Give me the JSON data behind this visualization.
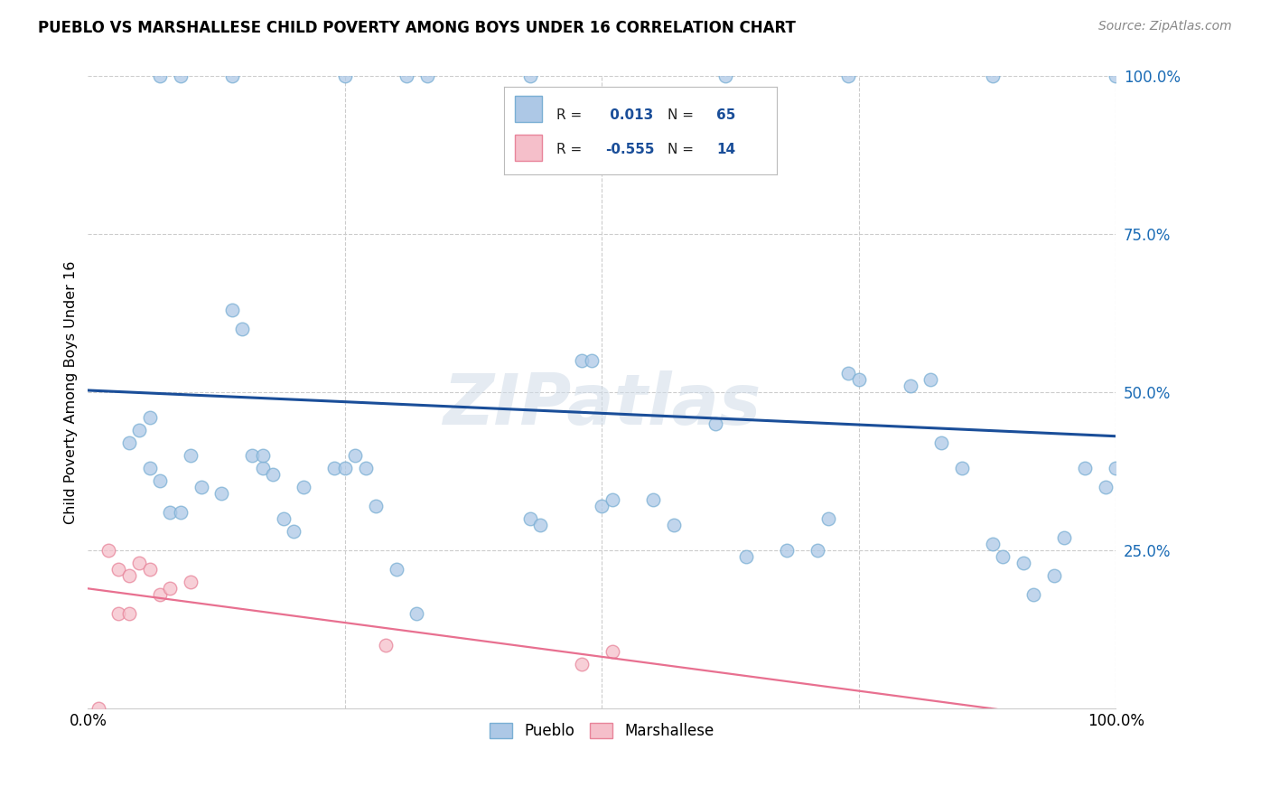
{
  "title": "PUEBLO VS MARSHALLESE CHILD POVERTY AMONG BOYS UNDER 16 CORRELATION CHART",
  "source": "Source: ZipAtlas.com",
  "ylabel": "Child Poverty Among Boys Under 16",
  "xlim": [
    0,
    1
  ],
  "ylim": [
    0,
    1
  ],
  "pueblo_color": "#adc8e6",
  "pueblo_edge_color": "#7aafd4",
  "marshallese_color": "#f5bfca",
  "marshallese_edge_color": "#e8849a",
  "blue_line_color": "#1a4e99",
  "pink_line_color": "#e87090",
  "r_pueblo": 0.013,
  "n_pueblo": 65,
  "r_marshallese": -0.555,
  "n_marshallese": 14,
  "pueblo_x": [
    0.07,
    0.09,
    0.14,
    0.25,
    0.31,
    0.33,
    0.43,
    0.62,
    0.74,
    0.88,
    1.0,
    0.04,
    0.05,
    0.06,
    0.06,
    0.07,
    0.08,
    0.09,
    0.1,
    0.11,
    0.13,
    0.14,
    0.15,
    0.16,
    0.17,
    0.17,
    0.18,
    0.19,
    0.2,
    0.21,
    0.24,
    0.25,
    0.26,
    0.27,
    0.28,
    0.3,
    0.32,
    0.43,
    0.44,
    0.5,
    0.51,
    0.55,
    0.57,
    0.61,
    0.64,
    0.68,
    0.71,
    0.72,
    0.74,
    0.75,
    0.8,
    0.82,
    0.83,
    0.85,
    0.88,
    0.89,
    0.91,
    0.92,
    0.94,
    0.95,
    0.97,
    0.99,
    1.0,
    0.48,
    0.49
  ],
  "pueblo_y": [
    1.0,
    1.0,
    1.0,
    1.0,
    1.0,
    1.0,
    1.0,
    1.0,
    1.0,
    1.0,
    1.0,
    0.42,
    0.44,
    0.46,
    0.38,
    0.36,
    0.31,
    0.31,
    0.4,
    0.35,
    0.34,
    0.63,
    0.6,
    0.4,
    0.38,
    0.4,
    0.37,
    0.3,
    0.28,
    0.35,
    0.38,
    0.38,
    0.4,
    0.38,
    0.32,
    0.22,
    0.15,
    0.3,
    0.29,
    0.32,
    0.33,
    0.33,
    0.29,
    0.45,
    0.24,
    0.25,
    0.25,
    0.3,
    0.53,
    0.52,
    0.51,
    0.52,
    0.42,
    0.38,
    0.26,
    0.24,
    0.23,
    0.18,
    0.21,
    0.27,
    0.38,
    0.35,
    0.38,
    0.55,
    0.55
  ],
  "marshallese_x": [
    0.01,
    0.02,
    0.03,
    0.03,
    0.04,
    0.04,
    0.05,
    0.06,
    0.07,
    0.08,
    0.1,
    0.29,
    0.48,
    0.51
  ],
  "marshallese_y": [
    0.0,
    0.25,
    0.22,
    0.15,
    0.21,
    0.15,
    0.23,
    0.22,
    0.18,
    0.19,
    0.2,
    0.1,
    0.07,
    0.09
  ],
  "watermark": "ZIPatlas",
  "marker_size": 110,
  "alpha": 0.75,
  "legend_r_color": "#1a4e99",
  "legend_n_color": "#1a4e99"
}
